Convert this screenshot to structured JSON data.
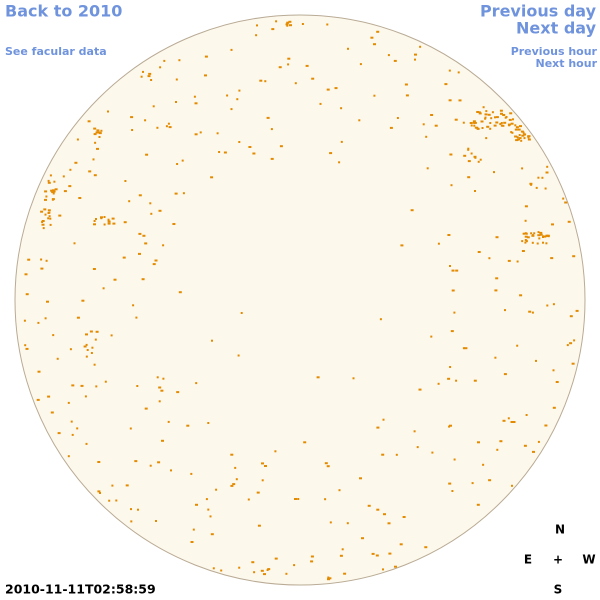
{
  "header": {
    "back_link": "Back to 2010",
    "facular_link": "See facular data",
    "previous_day": "Previous day",
    "next_day": "Next day",
    "previous_hour": "Previous hour",
    "next_hour": "Next hour"
  },
  "timestamp": "2010-11-11T02:58:59",
  "compass": {
    "north": "N",
    "east": "E",
    "center": "+",
    "west": "W",
    "south": "S"
  }
}
